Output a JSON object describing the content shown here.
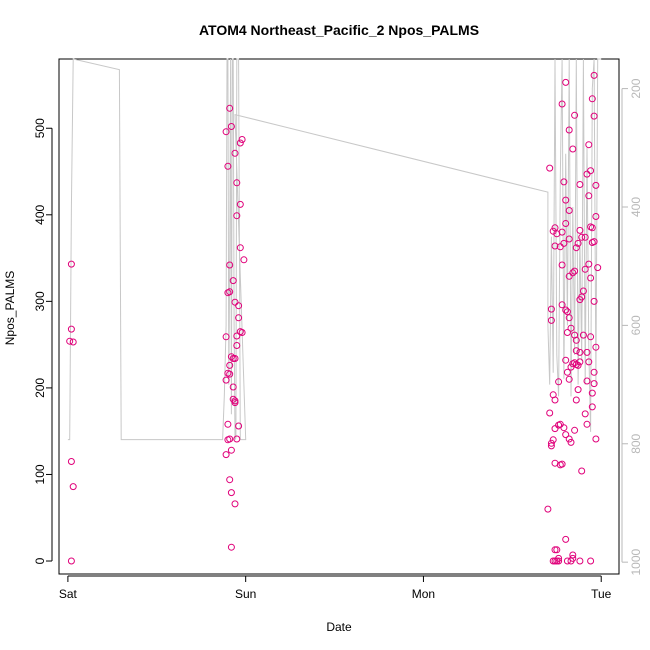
{
  "chart_data": {
    "type": "scatter",
    "title": "ATOM4 Northeast_Pacific_2 Npos_PALMS",
    "xlabel": "Date",
    "ylabel": "Npos_PALMS",
    "x_ticks": [
      "Sat",
      "Sun",
      "Mon",
      "Tue"
    ],
    "xlim": [
      -0.05,
      3.1
    ],
    "ylim": [
      -15,
      580
    ],
    "y_ticks": [
      0,
      100,
      200,
      300,
      400,
      500
    ],
    "y2_ticks": [
      200,
      400,
      600,
      800,
      1000
    ],
    "y2lim": [
      1020,
      150
    ],
    "colors": {
      "points": "#e0007a",
      "line": "#c8c8c8",
      "right_axis": "#b8b8b8",
      "frame": "#000000"
    },
    "series": [
      {
        "type": "scatter",
        "points": [
          [
            0.02,
            343
          ],
          [
            0.02,
            268
          ],
          [
            0.01,
            254
          ],
          [
            0.03,
            253
          ],
          [
            0.02,
            115
          ],
          [
            0.03,
            86
          ],
          [
            0.02,
            0
          ],
          [
            0.89,
            496
          ],
          [
            0.91,
            523
          ],
          [
            0.92,
            502
          ],
          [
            0.94,
            471
          ],
          [
            0.95,
            437
          ],
          [
            0.95,
            399
          ],
          [
            0.97,
            412
          ],
          [
            0.97,
            362
          ],
          [
            0.98,
            487
          ],
          [
            0.97,
            483
          ],
          [
            0.99,
            348
          ],
          [
            0.9,
            456
          ],
          [
            0.91,
            342
          ],
          [
            0.93,
            324
          ],
          [
            0.9,
            310
          ],
          [
            0.91,
            311
          ],
          [
            0.94,
            299
          ],
          [
            0.96,
            295
          ],
          [
            0.96,
            281
          ],
          [
            0.97,
            265
          ],
          [
            0.98,
            264
          ],
          [
            0.89,
            259
          ],
          [
            0.95,
            260
          ],
          [
            0.95,
            249
          ],
          [
            0.92,
            236
          ],
          [
            0.93,
            234
          ],
          [
            0.94,
            234
          ],
          [
            0.91,
            226
          ],
          [
            0.9,
            217
          ],
          [
            0.91,
            216
          ],
          [
            0.89,
            209
          ],
          [
            0.93,
            201
          ],
          [
            0.93,
            187
          ],
          [
            0.94,
            185
          ],
          [
            0.94,
            183
          ],
          [
            0.9,
            158
          ],
          [
            0.96,
            156
          ],
          [
            0.9,
            140
          ],
          [
            0.91,
            141
          ],
          [
            0.95,
            141
          ],
          [
            0.89,
            123
          ],
          [
            0.92,
            128
          ],
          [
            0.91,
            94
          ],
          [
            0.92,
            79
          ],
          [
            0.94,
            66
          ],
          [
            0.92,
            16
          ],
          [
            2.71,
            454
          ],
          [
            2.74,
            385
          ],
          [
            2.73,
            381
          ],
          [
            2.75,
            378
          ],
          [
            2.74,
            364
          ],
          [
            2.72,
            278
          ],
          [
            2.72,
            291
          ],
          [
            2.73,
            192
          ],
          [
            2.74,
            186
          ],
          [
            2.71,
            171
          ],
          [
            2.7,
            60
          ],
          [
            2.72,
            136
          ],
          [
            2.73,
            140
          ],
          [
            2.72,
            133
          ],
          [
            2.74,
            153
          ],
          [
            2.76,
            157
          ],
          [
            2.76,
            207
          ],
          [
            2.77,
            158
          ],
          [
            2.74,
            113
          ],
          [
            2.77,
            111
          ],
          [
            2.78,
            112
          ],
          [
            2.74,
            13
          ],
          [
            2.75,
            13
          ],
          [
            2.74,
            0
          ],
          [
            2.75,
            0
          ],
          [
            2.76,
            0
          ],
          [
            2.73,
            0
          ],
          [
            2.76,
            3
          ],
          [
            2.81,
            0
          ],
          [
            2.83,
            0
          ],
          [
            2.84,
            3
          ],
          [
            2.84,
            7
          ],
          [
            2.88,
            0
          ],
          [
            2.94,
            0
          ],
          [
            2.8,
            25
          ],
          [
            2.78,
            528
          ],
          [
            2.8,
            553
          ],
          [
            2.82,
            498
          ],
          [
            2.85,
            515
          ],
          [
            2.79,
            438
          ],
          [
            2.82,
            405
          ],
          [
            2.84,
            476
          ],
          [
            2.8,
            417
          ],
          [
            2.77,
            363
          ],
          [
            2.78,
            380
          ],
          [
            2.8,
            390
          ],
          [
            2.82,
            372
          ],
          [
            2.78,
            342
          ],
          [
            2.79,
            367
          ],
          [
            2.82,
            329
          ],
          [
            2.84,
            333
          ],
          [
            2.85,
            335
          ],
          [
            2.86,
            362
          ],
          [
            2.87,
            367
          ],
          [
            2.88,
            382
          ],
          [
            2.89,
            374
          ],
          [
            2.88,
            302
          ],
          [
            2.89,
            305
          ],
          [
            2.9,
            312
          ],
          [
            2.78,
            296
          ],
          [
            2.8,
            290
          ],
          [
            2.81,
            288
          ],
          [
            2.82,
            281
          ],
          [
            2.83,
            269
          ],
          [
            2.81,
            264
          ],
          [
            2.85,
            261
          ],
          [
            2.86,
            255
          ],
          [
            2.86,
            243
          ],
          [
            2.88,
            241
          ],
          [
            2.88,
            230
          ],
          [
            2.8,
            232
          ],
          [
            2.81,
            218
          ],
          [
            2.82,
            210
          ],
          [
            2.83,
            224
          ],
          [
            2.84,
            228
          ],
          [
            2.85,
            229
          ],
          [
            2.86,
            227
          ],
          [
            2.87,
            226
          ],
          [
            2.87,
            198
          ],
          [
            2.86,
            186
          ],
          [
            2.9,
            261
          ],
          [
            2.79,
            154
          ],
          [
            2.8,
            146
          ],
          [
            2.82,
            141
          ],
          [
            2.83,
            137
          ],
          [
            2.85,
            151
          ],
          [
            2.89,
            104
          ],
          [
            2.91,
            170
          ],
          [
            2.92,
            158
          ],
          [
            2.88,
            435
          ],
          [
            2.91,
            374
          ],
          [
            2.91,
            337
          ],
          [
            2.92,
            447
          ],
          [
            2.93,
            481
          ],
          [
            2.93,
            343
          ],
          [
            2.94,
            386
          ],
          [
            2.94,
            327
          ],
          [
            2.94,
            259
          ],
          [
            2.93,
            230
          ],
          [
            2.92,
            241
          ],
          [
            2.95,
            534
          ],
          [
            2.96,
            561
          ],
          [
            2.96,
            514
          ],
          [
            2.97,
            434
          ],
          [
            2.97,
            398
          ],
          [
            2.96,
            369
          ],
          [
            2.95,
            368
          ],
          [
            2.96,
            300
          ],
          [
            2.98,
            339
          ],
          [
            2.97,
            247
          ],
          [
            2.96,
            218
          ],
          [
            2.96,
            205
          ],
          [
            2.95,
            178
          ],
          [
            2.95,
            194
          ],
          [
            2.97,
            141
          ],
          [
            2.95,
            385
          ],
          [
            2.94,
            451
          ],
          [
            2.93,
            422
          ],
          [
            2.92,
            208
          ]
        ]
      },
      {
        "type": "line",
        "right_axis": true,
        "points": [
          [
            0.0,
            793
          ],
          [
            0.01,
            793
          ],
          [
            0.02,
            400
          ],
          [
            0.03,
            150
          ],
          [
            0.29,
            168
          ],
          [
            0.3,
            793
          ],
          [
            0.85,
            793
          ],
          [
            0.87,
            793
          ],
          [
            0.88,
            720
          ],
          [
            0.89,
            600
          ],
          [
            0.895,
            150
          ],
          [
            0.9,
            150
          ],
          [
            0.905,
            700
          ],
          [
            0.91,
            500
          ],
          [
            0.915,
            150
          ],
          [
            0.92,
            750
          ],
          [
            0.925,
            150
          ],
          [
            0.93,
            150
          ],
          [
            0.935,
            600
          ],
          [
            0.94,
            793
          ],
          [
            0.945,
            790
          ],
          [
            0.95,
            150
          ],
          [
            0.96,
            150
          ],
          [
            0.97,
            793
          ],
          [
            1.0,
            793
          ],
          [
            0.94,
            244
          ],
          [
            2.7,
            375
          ],
          [
            2.7,
            600
          ],
          [
            2.71,
            700
          ],
          [
            2.72,
            450
          ],
          [
            2.73,
            680
          ],
          [
            2.74,
            150
          ],
          [
            2.75,
            650
          ],
          [
            2.76,
            720
          ],
          [
            2.77,
            350
          ],
          [
            2.78,
            150
          ],
          [
            2.79,
            690
          ],
          [
            2.8,
            310
          ],
          [
            2.81,
            600
          ],
          [
            2.82,
            150
          ],
          [
            2.83,
            720
          ],
          [
            2.84,
            400
          ],
          [
            2.85,
            650
          ],
          [
            2.86,
            150
          ],
          [
            2.87,
            700
          ],
          [
            2.88,
            450
          ],
          [
            2.89,
            660
          ],
          [
            2.9,
            150
          ],
          [
            2.91,
            700
          ],
          [
            2.92,
            300
          ],
          [
            2.93,
            640
          ],
          [
            2.94,
            780
          ],
          [
            2.95,
            200
          ],
          [
            2.96,
            150
          ],
          [
            2.97,
            700
          ],
          [
            2.98,
            150
          ],
          [
            3.0,
            150
          ]
        ]
      }
    ]
  }
}
